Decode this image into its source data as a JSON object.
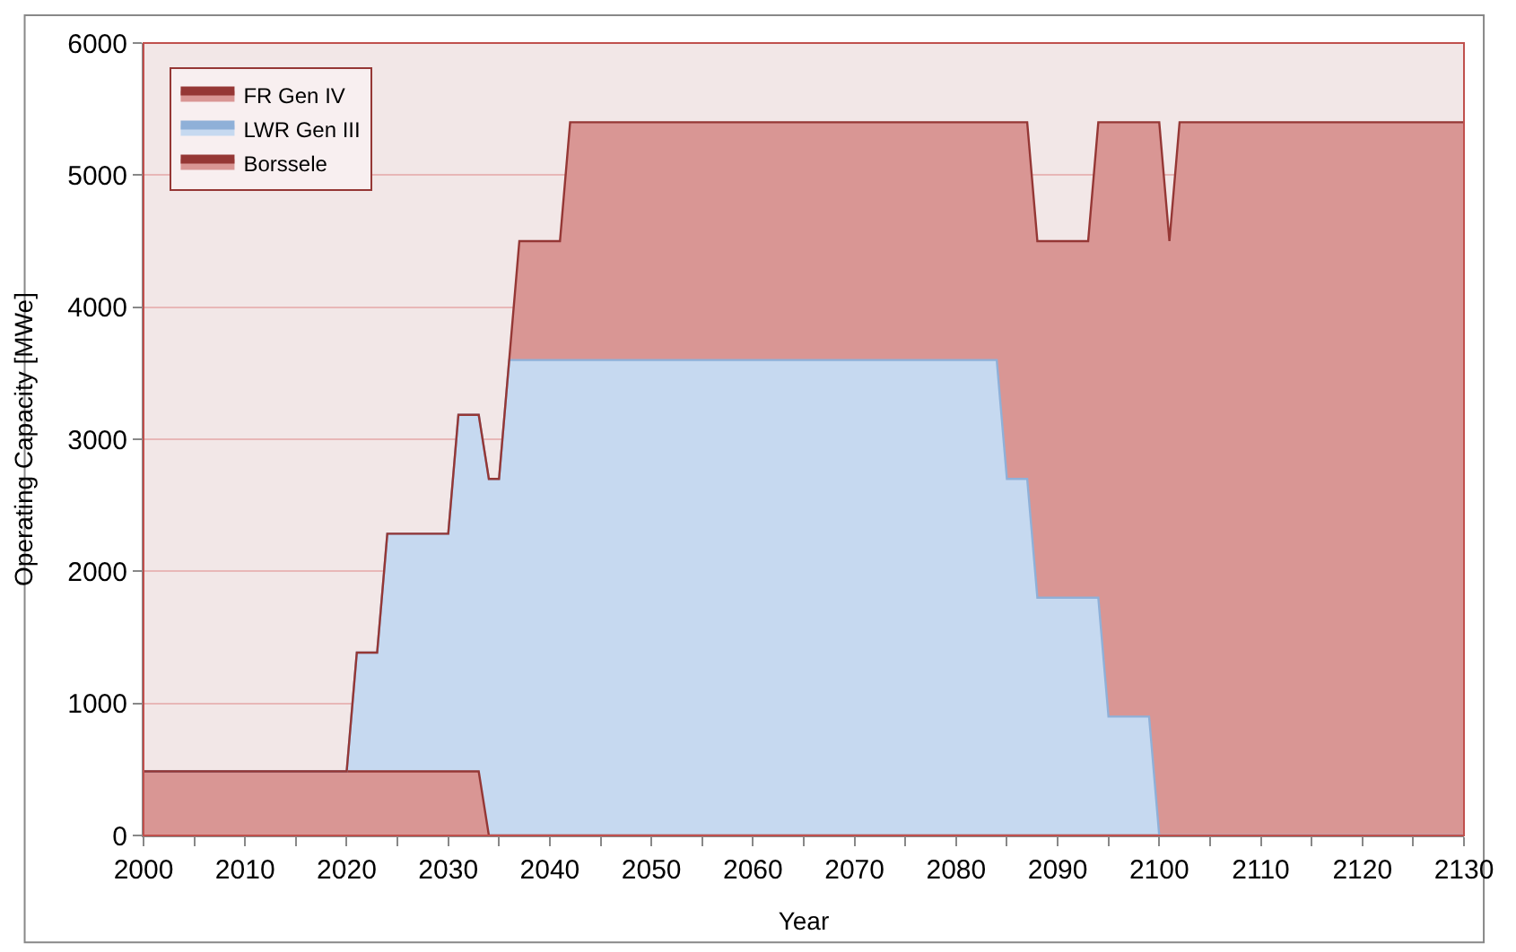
{
  "chart_data": {
    "type": "area",
    "stacked": true,
    "xlabel": "Year",
    "ylabel": "Operating Capacity [MWe]",
    "x": [
      2000,
      2020,
      2021,
      2023,
      2024,
      2030,
      2031,
      2033,
      2034,
      2035,
      2036,
      2037,
      2041,
      2042,
      2084,
      2085,
      2087,
      2088,
      2093,
      2094,
      2095,
      2099,
      2100,
      2101,
      2102,
      2130
    ],
    "series": [
      {
        "name": "Borssele",
        "color": "#d99694",
        "values": [
          485,
          485,
          485,
          485,
          485,
          485,
          485,
          485,
          0,
          0,
          0,
          0,
          0,
          0,
          0,
          0,
          0,
          0,
          0,
          0,
          0,
          0,
          0,
          0,
          0,
          0
        ]
      },
      {
        "name": "LWR Gen III",
        "color": "#c6d9f0",
        "values": [
          0,
          0,
          900,
          900,
          1800,
          1800,
          2700,
          2700,
          2700,
          2700,
          3600,
          3600,
          3600,
          3600,
          3600,
          2700,
          2700,
          1800,
          1800,
          1800,
          900,
          900,
          0,
          0,
          0,
          0
        ]
      },
      {
        "name": "FR Gen IV",
        "color": "#d99694",
        "values": [
          0,
          0,
          0,
          0,
          0,
          0,
          0,
          0,
          0,
          0,
          0,
          900,
          900,
          1800,
          1800,
          2700,
          2700,
          2700,
          2700,
          3600,
          4500,
          4500,
          5400,
          4500,
          5400,
          5400
        ]
      }
    ],
    "xlim": [
      2000,
      2130
    ],
    "xticks": [
      2000,
      2010,
      2020,
      2030,
      2040,
      2050,
      2060,
      2070,
      2080,
      2090,
      2100,
      2110,
      2120,
      2130
    ],
    "ylim": [
      0,
      6000
    ],
    "yticks": [
      0,
      1000,
      2000,
      3000,
      4000,
      5000,
      6000
    ],
    "grid": "y",
    "legend": "top left"
  }
}
